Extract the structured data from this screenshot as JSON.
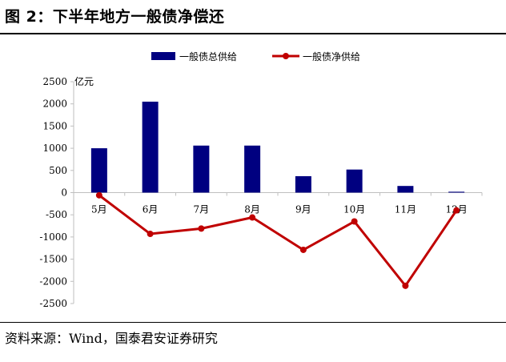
{
  "figure_title": "图 2：下半年地方一般债净偿还",
  "source_note": "资料来源：Wind，国泰君安证券研究",
  "chart_data": {
    "type": "bar",
    "title": "",
    "xlabel": "",
    "ylabel": "",
    "unit_label": "亿元",
    "categories": [
      "5月",
      "6月",
      "7月",
      "8月",
      "9月",
      "10月",
      "11月",
      "12月"
    ],
    "ylim": [
      -2500,
      2500
    ],
    "yticks": [
      -2500,
      -2000,
      -1500,
      -1000,
      -500,
      0,
      500,
      1000,
      1500,
      2000,
      2500
    ],
    "grid": false,
    "legend_position": "top-center",
    "series": [
      {
        "name": "一般债总供给",
        "type": "bar",
        "color": "#000080",
        "values": [
          1000,
          2050,
          1060,
          1060,
          370,
          520,
          150,
          20
        ]
      },
      {
        "name": "一般债净供给",
        "type": "line",
        "color": "#c00000",
        "values": [
          -60,
          -930,
          -810,
          -560,
          -1290,
          -650,
          -2100,
          -400
        ]
      }
    ]
  }
}
